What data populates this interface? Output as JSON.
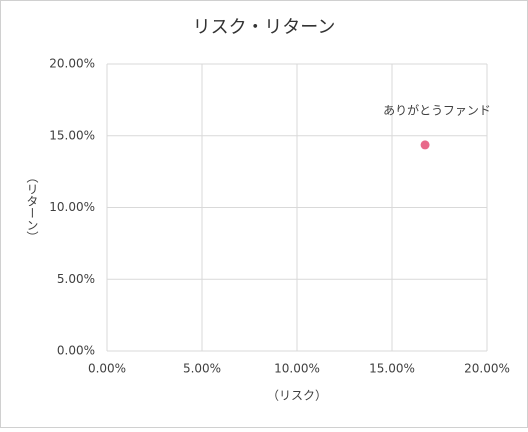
{
  "chart_data": {
    "type": "scatter",
    "title": "リスク・リターン",
    "x_label": "（リスク）",
    "y_label": "（リターン）",
    "series": [
      {
        "name": "ありがとうファンド",
        "color": "#e8698a",
        "x": [
          16.74
        ],
        "values": [
          14.36
        ]
      }
    ],
    "xlim": [
      0,
      20
    ],
    "ylim": [
      0,
      20
    ],
    "xticks": [
      {
        "value": 0,
        "label": "0.00%"
      },
      {
        "value": 5,
        "label": "5.00%"
      },
      {
        "value": 10,
        "label": "10.00%"
      },
      {
        "value": 15,
        "label": "15.00%"
      },
      {
        "value": 20,
        "label": "20.00%"
      }
    ],
    "yticks": [
      {
        "value": 0,
        "label": "0.00%"
      },
      {
        "value": 5,
        "label": "5.00%"
      },
      {
        "value": 10,
        "label": "10.00%"
      },
      {
        "value": 15,
        "label": "15.00%"
      },
      {
        "value": 20,
        "label": "20.00%"
      }
    ],
    "grid": true
  }
}
